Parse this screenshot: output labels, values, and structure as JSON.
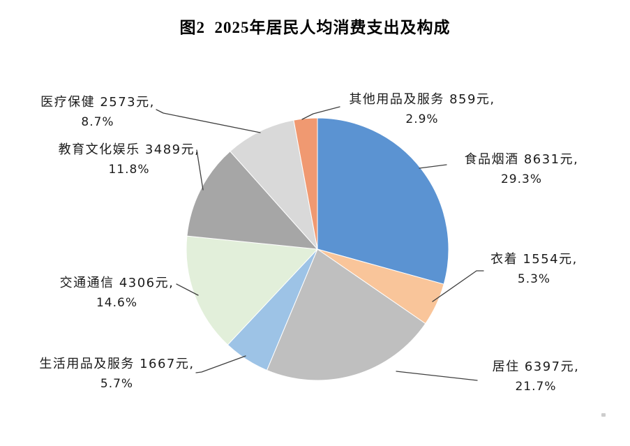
{
  "title": "图2  2025年居民人均消费支出及构成",
  "chart_data": {
    "type": "pie",
    "title": "图2  2025年居民人均消费支出及构成",
    "unit": "元",
    "start_angle_deg": 0,
    "direction": "clockwise",
    "legend_position": "none",
    "slices": [
      {
        "name": "食品烟酒",
        "value": 8631,
        "percent": 29.3,
        "color": "#5B93D2",
        "label_line1": "食品烟酒 8631元,",
        "label_line2": "29.3%"
      },
      {
        "name": "衣着",
        "value": 1554,
        "percent": 5.3,
        "color": "#F9C59A",
        "label_line1": "衣着 1554元,",
        "label_line2": "5.3%"
      },
      {
        "name": "居住",
        "value": 6397,
        "percent": 21.7,
        "color": "#BFBFBF",
        "label_line1": "居住 6397元,",
        "label_line2": "21.7%"
      },
      {
        "name": "生活用品及服务",
        "value": 1667,
        "percent": 5.7,
        "color": "#9DC3E6",
        "label_line1": "生活用品及服务 1667元,",
        "label_line2": "5.7%"
      },
      {
        "name": "交通通信",
        "value": 4306,
        "percent": 14.6,
        "color": "#E2EFDA",
        "label_line1": "交通通信 4306元,",
        "label_line2": "14.6%"
      },
      {
        "name": "教育文化娱乐",
        "value": 3489,
        "percent": 11.8,
        "color": "#A6A6A6",
        "label_line1": "教育文化娱乐 3489元,",
        "label_line2": "11.8%"
      },
      {
        "name": "医疗保健",
        "value": 2573,
        "percent": 8.7,
        "color": "#D9D9D9",
        "label_line1": "医疗保健 2573元,",
        "label_line2": "8.7%"
      },
      {
        "name": "其他用品及服务",
        "value": 859,
        "percent": 2.9,
        "color": "#F09971",
        "label_line1": "其他用品及服务 859元,",
        "label_line2": "2.9%"
      }
    ]
  }
}
